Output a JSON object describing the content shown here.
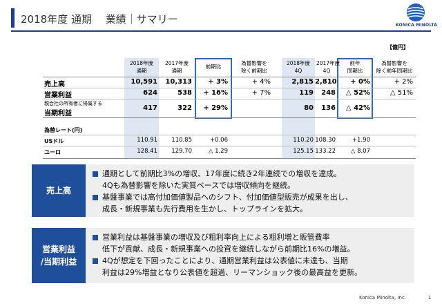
{
  "header": {
    "title": "2018年度 通期　 業績｜サマリー",
    "logo_text": "KONICA MINOLTA"
  },
  "unit": "【億円】",
  "table": {
    "col_headers": [
      {
        "line1": "2018年度",
        "line2": "通期"
      },
      {
        "line1": "2017年度",
        "line2": "通期"
      },
      {
        "line1": "前期比",
        "line2": ""
      },
      {
        "line1": "為替影響を",
        "line2": "除く前期比"
      },
      {
        "line1": "2018年度",
        "line2": "4Q"
      },
      {
        "line1": "2017年度",
        "line2": "4Q"
      },
      {
        "line1": "前年",
        "line2": "同期比"
      },
      {
        "line1": "為替影響を",
        "line2": "除く前年同期比"
      }
    ],
    "rows": [
      {
        "label": "売上高",
        "sublabel": "",
        "values": [
          "10,591",
          "10,313",
          "+ 3%",
          "+ 4%",
          "2,815",
          "2,810",
          "+ 0%",
          "+ 2%"
        ]
      },
      {
        "label": "営業利益",
        "sublabel": "",
        "values": [
          "624",
          "538",
          "+ 16%",
          "+ 7%",
          "119",
          "248",
          "△ 52%",
          "△ 51%"
        ]
      },
      {
        "label": "当期利益",
        "sublabel": "親会社の所有者に帰属する",
        "values": [
          "417",
          "322",
          "+ 29%",
          "",
          "80",
          "136",
          "△ 42%",
          ""
        ]
      }
    ],
    "fx_header": "為替レート(円)",
    "fx_rows": [
      {
        "label": "USドル",
        "values": [
          "110.91",
          "110.85",
          "+0.06",
          "",
          "110.20",
          "108.30",
          "+1.90",
          ""
        ]
      },
      {
        "label": "ユーロ",
        "values": [
          "128.41",
          "129.70",
          "△ 1.29",
          "",
          "125.15",
          "133.22",
          "△ 8.07",
          ""
        ]
      }
    ]
  },
  "sections": [
    {
      "label": "売上高",
      "bullets": [
        [
          "通期として前期比3%の増収、17年度に続き2年連続での増収を達成。",
          "4Qも為替影響を除いた実質ベースでは増収傾向を継続。"
        ],
        [
          "基盤事業では高付加価値製品へのシフト、付加価値型販売が成果を出し、",
          "成長・新規事業も先行費用を生かし、トップラインを拡大。"
        ]
      ]
    },
    {
      "label": "営業利益\n/当期利益",
      "label_line1": "営業利益",
      "label_line2": "/当期利益",
      "bullets": [
        [
          "営業利益は基盤事業の増収及び粗利率向上による粗利増と販管費率",
          "低下が貢献、成長・新規事業への投資を継続しながら前期比16%の増益。"
        ],
        [
          "4Qが想定を下回ったことにより、通期営業利益は公表値に未達も、当期",
          "利益は29%増益となり公表値を超過、リーマンショック後の最高益を更新。"
        ]
      ]
    }
  ],
  "footer": {
    "company": "Konica Minolta, Inc.",
    "page": "1"
  },
  "colors": {
    "accent": "#1f3a93",
    "section_label": "#1f4e9a",
    "highlight_box": "#2b6cb8",
    "column_fill": "#dfe8f2"
  }
}
